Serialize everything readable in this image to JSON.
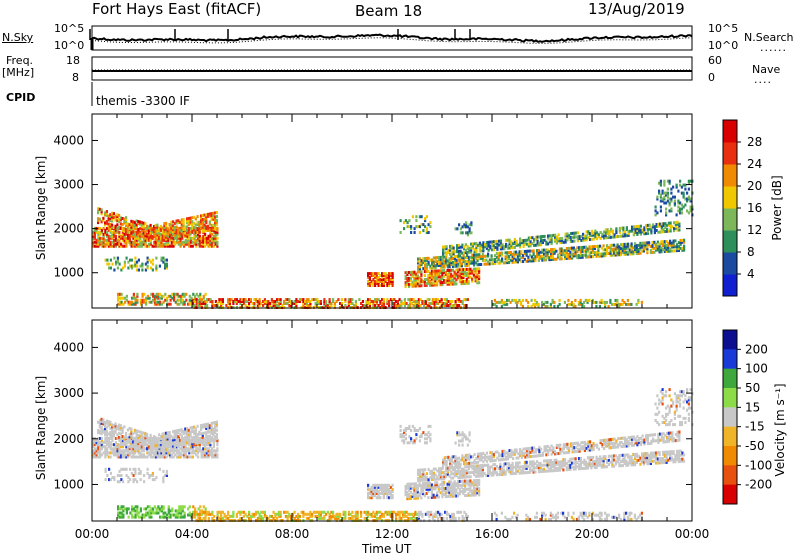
{
  "header": {
    "title": "Fort Hays East (fitACF)",
    "beam": "Beam 18",
    "date": "13/Aug/2019"
  },
  "top_panels": {
    "nsky_label": "N.Sky",
    "nsearch_label": "N.Search",
    "noise_tick_hi": "10^5",
    "noise_tick_lo": "10^0",
    "freq_label_1": "Freq.",
    "freq_label_2": "[MHz]",
    "freq_tick_hi": "18",
    "freq_tick_lo": "8",
    "nave_label": "Nave",
    "nave_tick_hi": "60",
    "nave_tick_lo": "0",
    "cpid_label": "CPID",
    "cpid_text": "themis -3300 IF"
  },
  "legend_colors": {
    "power": [
      "#1020d0",
      "#1a4ba0",
      "#2f8f5a",
      "#7cb85a",
      "#f0c800",
      "#f08a00",
      "#e83010",
      "#d80000"
    ],
    "velocity": [
      "#0c1090",
      "#1a3ad8",
      "#3ea83c",
      "#8cdc4a",
      "#c8c8c8",
      "#f0b428",
      "#f08a00",
      "#e85010",
      "#d80000"
    ]
  },
  "chart_data": [
    {
      "type": "heatmap",
      "title": "",
      "ylabel": "Slant Range [km]",
      "ylim": [
        200,
        4600
      ],
      "xlim_hours": [
        0,
        24
      ],
      "yticks": [
        "1000",
        "2000",
        "3000",
        "4000"
      ],
      "colorbar_label": "Power [dB]",
      "colorbar_ticks": [
        "4",
        "8",
        "12",
        "16",
        "20",
        "24",
        "28"
      ],
      "colorbar_range": [
        0,
        30
      ]
    },
    {
      "type": "heatmap",
      "title": "",
      "ylabel": "Slant Range [km]",
      "ylim": [
        200,
        4600
      ],
      "xlim_hours": [
        0,
        24
      ],
      "yticks": [
        "1000",
        "2000",
        "3000",
        "4000"
      ],
      "colorbar_label": "Velocity [m s⁻¹]",
      "colorbar_ticks": [
        "200",
        "100",
        "50",
        "15",
        "-15",
        "-50",
        "-100",
        "-200"
      ],
      "xlabel": "Time UT",
      "xticks": [
        "00:00",
        "04:00",
        "08:00",
        "12:00",
        "16:00",
        "20:00",
        "00:00"
      ]
    }
  ]
}
